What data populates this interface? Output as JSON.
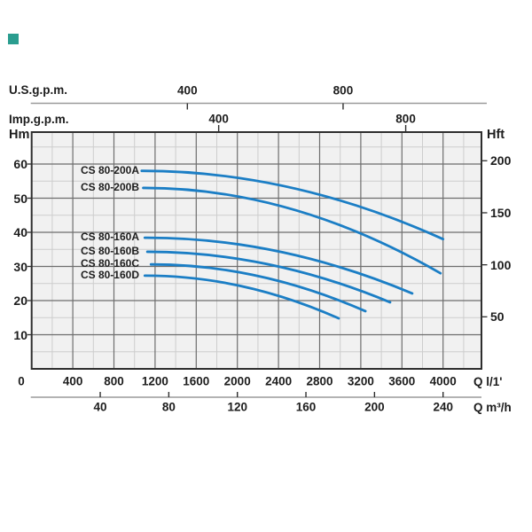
{
  "brand_marker": {
    "color": "#2a9d8f"
  },
  "chart_data": {
    "type": "line",
    "curve_color": "#1b7ec5",
    "x_axes": [
      {
        "id": "us_gpm",
        "label": "U.S.g.p.m.",
        "position": "top",
        "factor_l_per_min": 3.785,
        "ticks": [
          400,
          800
        ],
        "tick_labels": [
          "400",
          "800"
        ]
      },
      {
        "id": "imp_gpm",
        "label": "Imp.g.p.m.",
        "position": "top",
        "factor_l_per_min": 4.546,
        "ticks": [
          400,
          800
        ],
        "tick_labels": [
          "400",
          "800"
        ]
      },
      {
        "id": "l_min",
        "label": "Q l/1'",
        "position": "bottom",
        "factor_l_per_min": 1,
        "ticks": [
          0,
          400,
          800,
          1200,
          1600,
          2000,
          2400,
          2800,
          3200,
          3600,
          4000
        ],
        "tick_labels": [
          "0",
          "400",
          "800",
          "1200",
          "1600",
          "2000",
          "2400",
          "2800",
          "3200",
          "3600",
          "4000"
        ]
      },
      {
        "id": "m3_h",
        "label": "Q m³/h",
        "position": "bottom",
        "factor_l_per_min": 16.667,
        "ticks": [
          40,
          80,
          120,
          160,
          200,
          240
        ],
        "tick_labels": [
          "40",
          "80",
          "120",
          "160",
          "200",
          "240"
        ]
      }
    ],
    "y_axes": [
      {
        "id": "hm",
        "label": "Hm",
        "position": "left",
        "factor_m": 1,
        "ticks": [
          60,
          50,
          40,
          30,
          20,
          10
        ],
        "tick_labels": [
          "60",
          "50",
          "40",
          "30",
          "20",
          "10"
        ]
      },
      {
        "id": "hft",
        "label": "Hft",
        "position": "right",
        "factor_m": 0.3048,
        "ticks": [
          200,
          150,
          100,
          50
        ],
        "tick_labels": [
          "200",
          "150",
          "100",
          "50"
        ]
      }
    ],
    "xlim_l_min": [
      0,
      4370
    ],
    "ylim_m": [
      0,
      69
    ],
    "grid": {
      "x_major_step": 400,
      "x_minor_step": 200,
      "y_major_step": 10,
      "y_minor_step": 5
    },
    "series": [
      {
        "name": "CS 80-200A",
        "points_q_h": [
          [
            1070,
            58.0
          ],
          [
            2535,
            53.0
          ],
          [
            4000,
            38.0
          ]
        ]
      },
      {
        "name": "CS 80-200B",
        "points_q_h": [
          [
            1085,
            53.0
          ],
          [
            2530,
            46.8
          ],
          [
            3975,
            28.0
          ]
        ]
      },
      {
        "name": "CS 80-160A",
        "points_q_h": [
          [
            1100,
            38.4
          ],
          [
            2400,
            34.4
          ],
          [
            3700,
            22.1
          ]
        ]
      },
      {
        "name": "CS 80-160B",
        "points_q_h": [
          [
            1125,
            34.3
          ],
          [
            2305,
            30.6
          ],
          [
            3485,
            19.5
          ]
        ]
      },
      {
        "name": "CS 80-160C",
        "points_q_h": [
          [
            1160,
            30.6
          ],
          [
            2200,
            27.2
          ],
          [
            3245,
            16.9
          ]
        ]
      },
      {
        "name": "CS 80-160D",
        "points_q_h": [
          [
            1100,
            27.3
          ],
          [
            2045,
            24.2
          ],
          [
            2985,
            14.8
          ]
        ]
      }
    ]
  }
}
